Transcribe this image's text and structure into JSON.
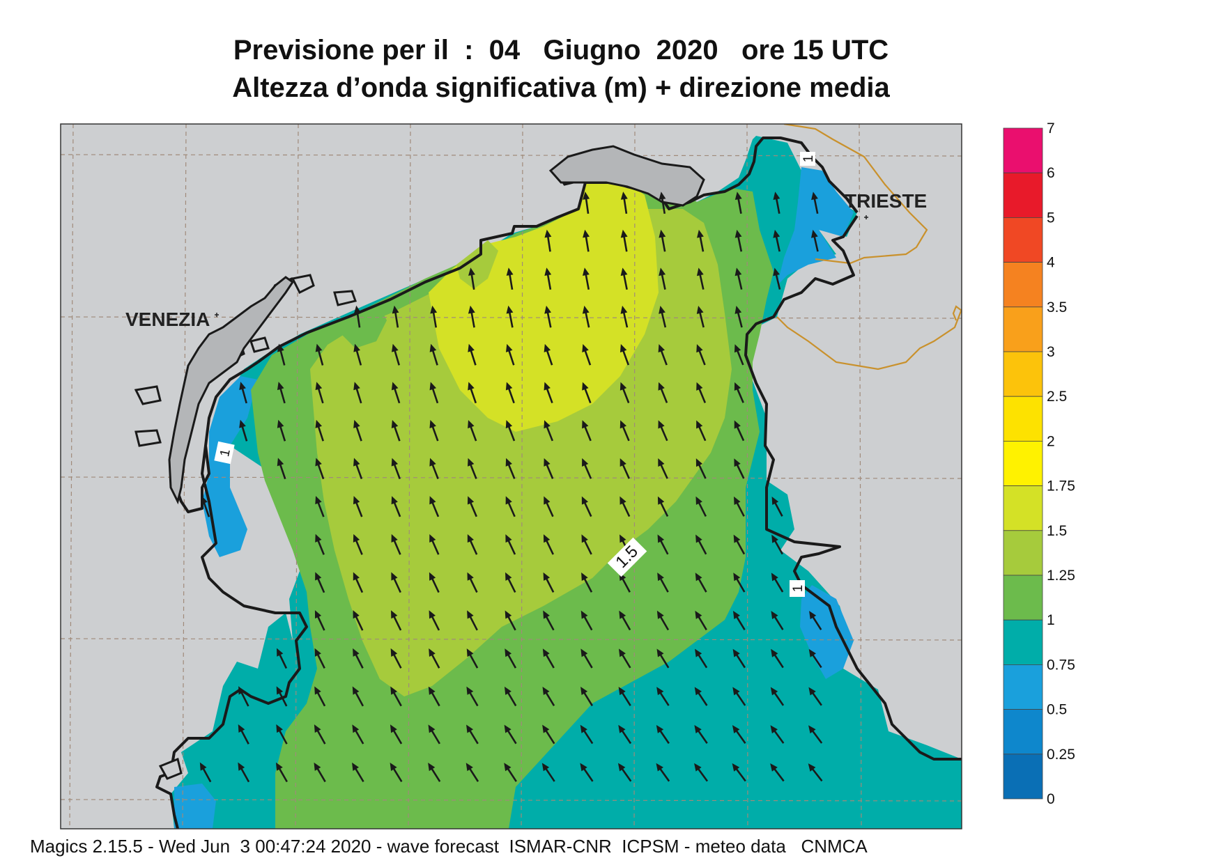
{
  "title": {
    "line1": "Previsione per il  :  04   Giugno  2020   ore 15 UTC",
    "line2": "Altezza d’onda significativa (m) + direzione media"
  },
  "footer": "Magics 2.15.5 - Wed Jun  3 00:47:24 2020 - wave forecast  ISMAR-CNR  ICPSM - meteo data   CNMCA",
  "cities": [
    {
      "name": "VENEZIA"
    },
    {
      "name": "TRIESTE"
    }
  ],
  "contour_labels": [
    "1",
    "1.5",
    "1",
    "1"
  ],
  "legend": {
    "labels": [
      "7",
      "6",
      "5",
      "4",
      "3.5",
      "3",
      "2.5",
      "2",
      "1.75",
      "1.5",
      "1.25",
      "1",
      "0.75",
      "0.5",
      "0.25",
      "0"
    ],
    "colors": [
      "#ea0f6e",
      "#e81a2a",
      "#f04824",
      "#f58220",
      "#f9a01b",
      "#fcc30b",
      "#fde200",
      "#fff200",
      "#d4e126",
      "#a6cb3c",
      "#6cbb4c",
      "#00ada9",
      "#1aa0dc",
      "#0e87cc",
      "#0a6fb5",
      "#0b5aa3"
    ]
  },
  "colors": {
    "land": "#cdcfd1",
    "coast": "#1a1a1a",
    "border": "#c9912c",
    "grid": "#a08a7a",
    "arrow": "#1a1a1a"
  },
  "wave_direction": "north-northwest"
}
